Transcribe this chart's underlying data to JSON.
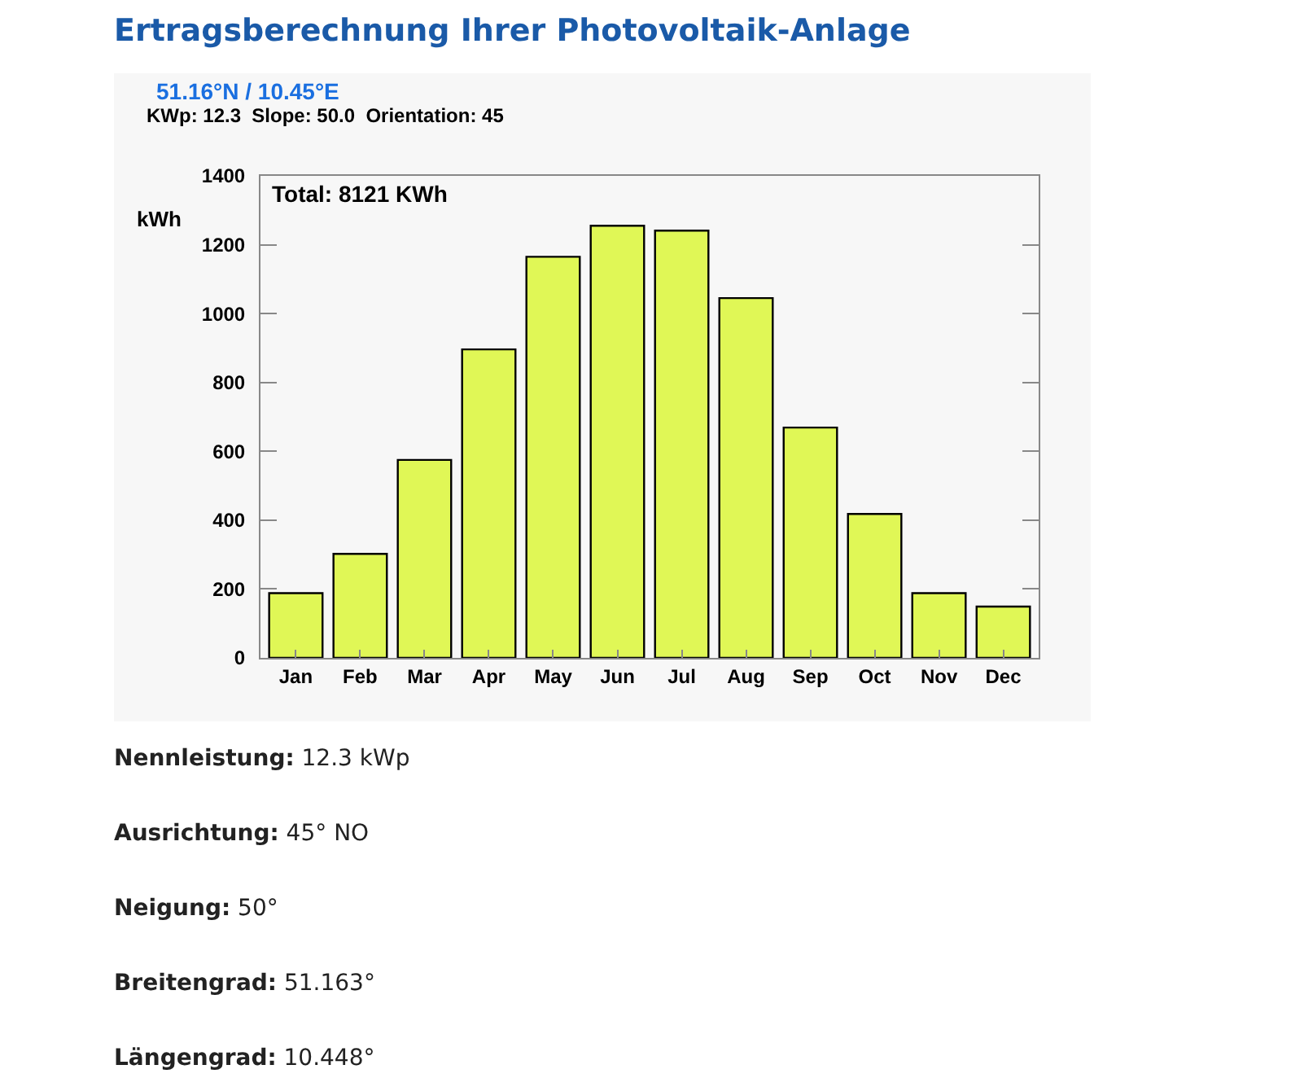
{
  "chart_data": {
    "type": "bar",
    "title": "Ertragsberechnung Ihrer Photovoltaik-Anlage",
    "subtitle": "51.16°N / 10.45°E",
    "ylabel": "kWh",
    "categories": [
      "Jan",
      "Feb",
      "Mar",
      "Apr",
      "May",
      "Jun",
      "Jul",
      "Aug",
      "Sep",
      "Oct",
      "Nov",
      "Dec"
    ],
    "values": [
      188,
      302,
      575,
      896,
      1165,
      1255,
      1241,
      1045,
      669,
      418,
      188,
      149
    ],
    "color": "#e0f756",
    "ylim": [
      0,
      1400
    ],
    "yticks": [
      0,
      200,
      400,
      600,
      800,
      1000,
      1200,
      1400
    ],
    "grid": false,
    "annotations": [
      "Total: 8121 KWh",
      "KWp: 12.3  Slope: 50.0  Orientation: 45",
      "Nennleistung: 12.3 kWp",
      "Ausrichtung: 45° NO",
      "Neigung: 50°",
      "Breitengrad: 51.163°",
      "Längengrad: 10.448°"
    ]
  }
}
